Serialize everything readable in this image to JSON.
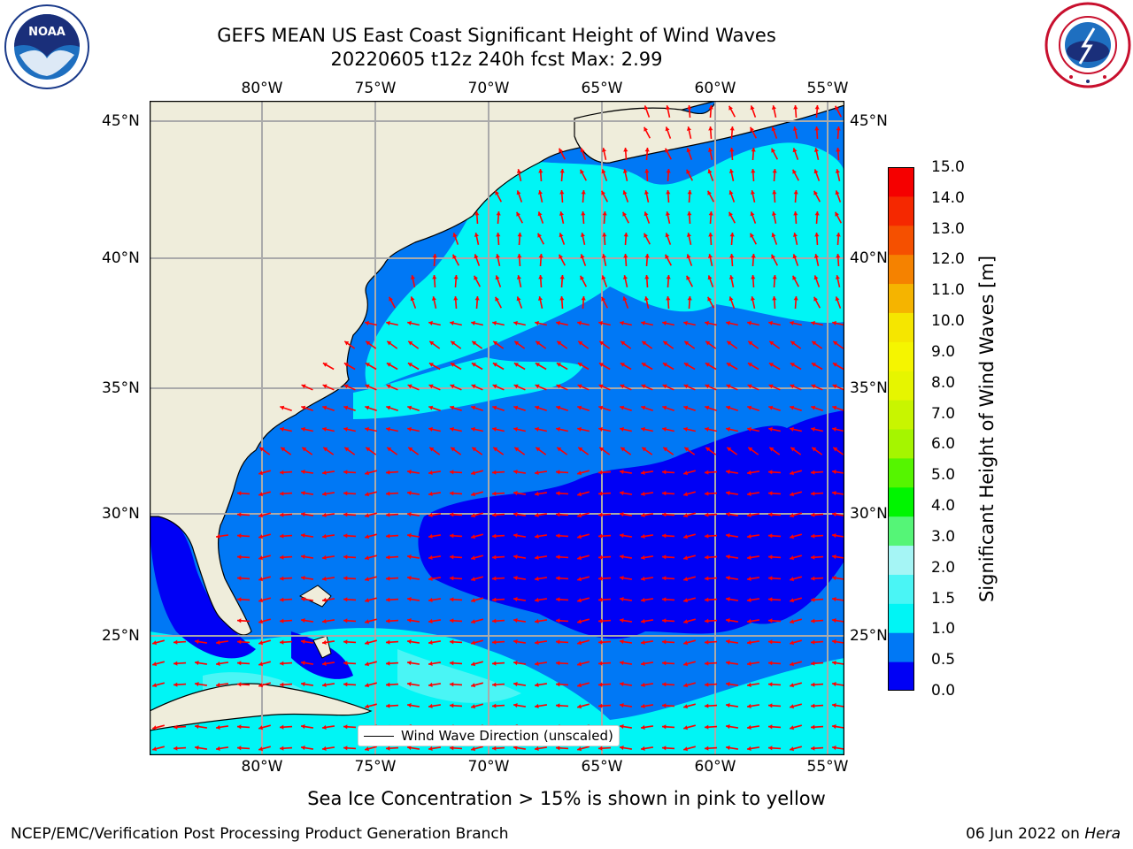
{
  "header": {
    "title_line1": "GEFS MEAN US East Coast Significant Height of Wind Waves",
    "title_line2": "20220605 t12z 240h fcst   Max: 2.99"
  },
  "logos": {
    "left": "NOAA",
    "right": "NATIONAL WEATHER SERVICE"
  },
  "map": {
    "lon_labels": [
      "80°W",
      "75°W",
      "70°W",
      "65°W",
      "60°W",
      "55°W"
    ],
    "lat_labels": [
      "45°N",
      "40°N",
      "35°N",
      "30°N",
      "25°N"
    ],
    "lon_range": [
      -85,
      -54.5
    ],
    "lat_range": [
      20.5,
      46
    ],
    "legend_text": "Wind Wave Direction (unscaled)",
    "arrow_color": "#ff0000",
    "land_color": "#efeddb"
  },
  "colorbar": {
    "label": "Significant Height of Wind Waves [m]",
    "ticks": [
      "15.0",
      "14.0",
      "13.0",
      "12.0",
      "11.0",
      "10.0",
      "9.0",
      "8.0",
      "7.0",
      "6.0",
      "5.0",
      "4.0",
      "3.0",
      "2.0",
      "1.5",
      "1.0",
      "0.5",
      "0.0"
    ],
    "colors": [
      "#0000f5",
      "#0078f5",
      "#00f5f5",
      "#4af5f5",
      "#a5f5f5",
      "#55f577",
      "#00f500",
      "#55f500",
      "#a5f500",
      "#c8f500",
      "#e6f500",
      "#f5f500",
      "#f5e600",
      "#f5b400",
      "#f58200",
      "#f55000",
      "#f52800",
      "#f50000"
    ]
  },
  "note": "Sea Ice Concentration > 15% is shown in pink to yellow",
  "footer": {
    "left": "NCEP/EMC/Verification Post Processing Product Generation Branch",
    "date": "06 Jun 2022 on ",
    "host": "Hera"
  }
}
